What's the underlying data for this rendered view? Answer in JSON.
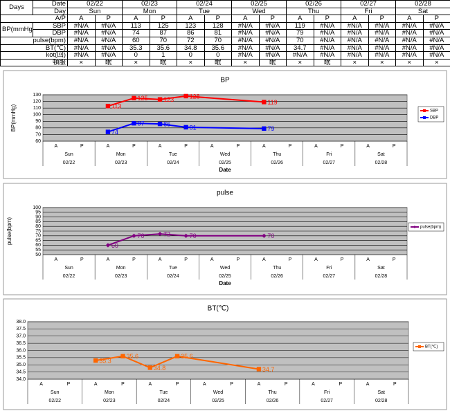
{
  "table": {
    "corner": "Days",
    "date_label": "Date",
    "day_label": "Day",
    "ap_label": "A/P",
    "dates": [
      "02/22",
      "02/23",
      "02/24",
      "02/25",
      "02/26",
      "02/27",
      "02/28"
    ],
    "days": [
      "Sun",
      "Mon",
      "Tue",
      "Wed",
      "Thu",
      "Fri",
      "Sat"
    ],
    "ap": [
      "A",
      "P",
      "A",
      "P",
      "A",
      "P",
      "A",
      "P",
      "A",
      "P",
      "A",
      "P",
      "A",
      "P"
    ],
    "group_label": "BP(mmHg)",
    "rows": [
      {
        "label": "SBP",
        "cells": [
          "#N/A",
          "#N/A",
          "113",
          "125",
          "123",
          "128",
          "#N/A",
          "#N/A",
          "119",
          "#N/A",
          "#N/A",
          "#N/A",
          "#N/A",
          "#N/A"
        ]
      },
      {
        "label": "DBP",
        "cells": [
          "#N/A",
          "#N/A",
          "74",
          "87",
          "86",
          "81",
          "#N/A",
          "#N/A",
          "79",
          "#N/A",
          "#N/A",
          "#N/A",
          "#N/A",
          "#N/A"
        ]
      },
      {
        "label": "pulse(bpm)",
        "cells": [
          "#N/A",
          "#N/A",
          "60",
          "70",
          "72",
          "70",
          "#N/A",
          "#N/A",
          "70",
          "#N/A",
          "#N/A",
          "#N/A",
          "#N/A",
          "#N/A"
        ]
      },
      {
        "label": "BT(℃)",
        "cells": [
          "#N/A",
          "#N/A",
          "35.3",
          "35.6",
          "34.8",
          "35.6",
          "#N/A",
          "#N/A",
          "34.7",
          "#N/A",
          "#N/A",
          "#N/A",
          "#N/A",
          "#N/A"
        ]
      },
      {
        "label": "kot(回)",
        "cells": [
          "#N/A",
          "#N/A",
          "0",
          "1",
          "0",
          "0",
          "#N/A",
          "#N/A",
          "#N/A",
          "#N/A",
          "#N/A",
          "#N/A",
          "#N/A",
          "#N/A"
        ]
      },
      {
        "label": "頓服",
        "cells": [
          "×",
          "眠",
          "×",
          "眠",
          "×",
          "眠",
          "×",
          "眠",
          "×",
          "眠",
          "×",
          "×",
          "×",
          "×"
        ]
      }
    ]
  },
  "chart_data": [
    {
      "type": "line",
      "title": "BP",
      "y_label": "BP(mmHg)",
      "x_label": "Date",
      "categories": [
        "A",
        "P",
        "A",
        "P",
        "A",
        "P",
        "A",
        "P",
        "A",
        "P",
        "A",
        "P",
        "A",
        "P"
      ],
      "days": [
        "Sun",
        "Mon",
        "Tue",
        "Wed",
        "Thu",
        "Fri",
        "Sat"
      ],
      "dates": [
        "02/22",
        "02/23",
        "02/24",
        "02/25",
        "02/26",
        "02/27",
        "02/28"
      ],
      "ylim": [
        60,
        130
      ],
      "yticks": [
        60,
        70,
        80,
        90,
        100,
        110,
        120,
        130
      ],
      "grid": true,
      "legend": "right",
      "series": [
        {
          "name": "SBP",
          "color": "#ff0000",
          "marker": "square",
          "values": [
            null,
            null,
            113,
            125,
            123,
            128,
            null,
            null,
            119,
            null,
            null,
            null,
            null,
            null
          ]
        },
        {
          "name": "DBP",
          "color": "#0000ff",
          "marker": "square",
          "values": [
            null,
            null,
            74,
            87,
            86,
            81,
            null,
            null,
            79,
            null,
            null,
            null,
            null,
            null
          ]
        }
      ]
    },
    {
      "type": "line",
      "title": "pulse",
      "y_label": "pulse(bpm)",
      "x_label": "Date",
      "categories": [
        "A",
        "P",
        "A",
        "P",
        "A",
        "P",
        "A",
        "P",
        "A",
        "P",
        "A",
        "P",
        "A",
        "P"
      ],
      "days": [
        "Sun",
        "Mon",
        "Tue",
        "Wed",
        "Thu",
        "Fri",
        "Sat"
      ],
      "dates": [
        "02/22",
        "02/23",
        "02/24",
        "02/25",
        "02/26",
        "02/27",
        "02/28"
      ],
      "ylim": [
        50,
        100
      ],
      "yticks": [
        50,
        55,
        60,
        65,
        70,
        75,
        80,
        85,
        90,
        95,
        100
      ],
      "grid": true,
      "legend": "right",
      "series": [
        {
          "name": "pulse(bpm)",
          "color": "#800080",
          "marker": "diamond",
          "values": [
            null,
            null,
            60,
            70,
            72,
            70,
            null,
            null,
            70,
            null,
            null,
            null,
            null,
            null
          ]
        }
      ]
    },
    {
      "type": "line",
      "title": "BT(℃)",
      "categories": [
        "A",
        "P",
        "A",
        "P",
        "A",
        "P",
        "A",
        "P",
        "A",
        "P",
        "A",
        "P",
        "A",
        "P"
      ],
      "days": [
        "Sun",
        "Mon",
        "Tue",
        "Wed",
        "Thu",
        "Fri",
        "Sat"
      ],
      "dates": [
        "02/22",
        "02/23",
        "02/24",
        "02/25",
        "02/26",
        "02/27",
        "02/28"
      ],
      "ylim": [
        34,
        38
      ],
      "yticks": [
        {
          "value": 34,
          "label": "34.0"
        },
        {
          "value": 34.5,
          "label": "34.5"
        },
        {
          "value": 35,
          "label": "35.0"
        },
        {
          "value": 35.5,
          "label": "35.5"
        },
        {
          "value": 36,
          "label": "36.0"
        },
        {
          "value": 36.5,
          "label": "36.5"
        },
        {
          "value": 37,
          "label": "37.0"
        },
        {
          "value": 37.5,
          "label": "37.5"
        },
        {
          "value": 38,
          "label": "38.0"
        }
      ],
      "grid": true,
      "legend": "right",
      "series": [
        {
          "name": "BT(℃)",
          "color": "#ff6600",
          "marker": "square",
          "values": [
            null,
            null,
            35.3,
            35.6,
            34.8,
            35.6,
            null,
            null,
            34.7,
            null,
            null,
            null,
            null,
            null
          ]
        }
      ]
    }
  ]
}
